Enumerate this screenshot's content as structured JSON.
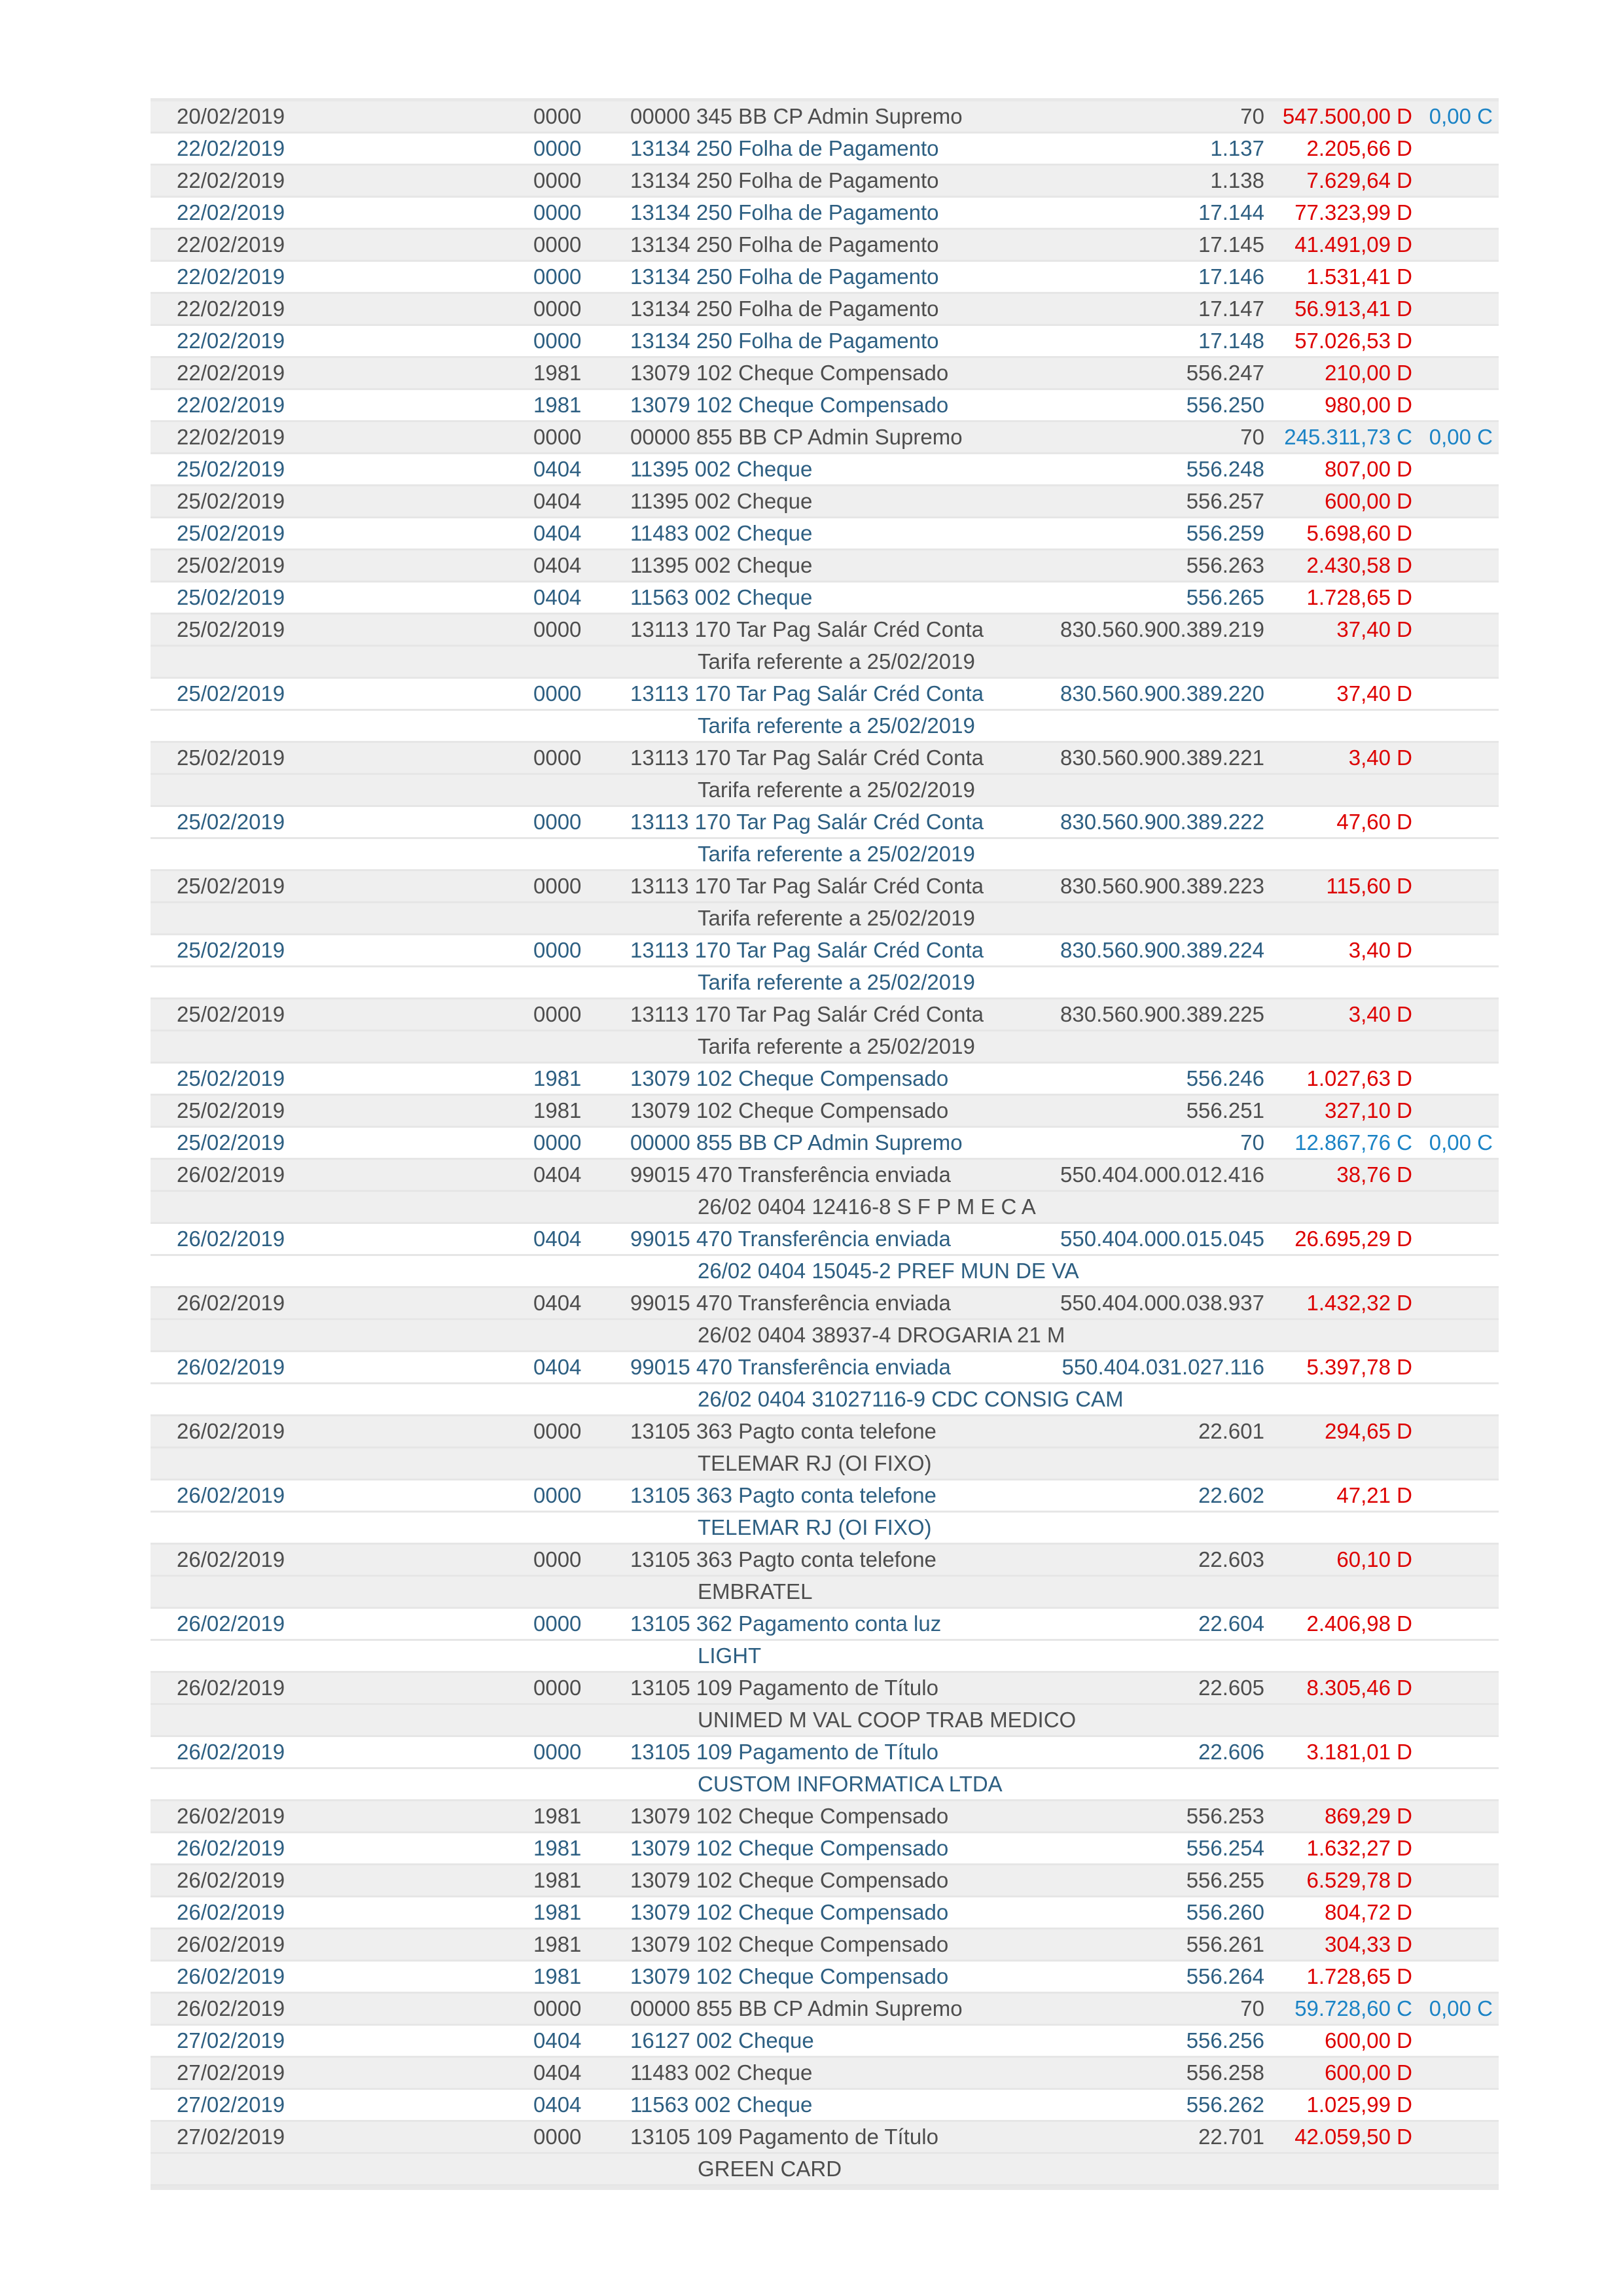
{
  "colors": {
    "stripe_gray": "#efefef",
    "row_text_gray": "#4d4d4d",
    "row_text_blue": "#2d5f82",
    "debit_red": "#dd0000",
    "credit_blue": "#1b83c5",
    "separator": "#e6e6e6"
  },
  "table": {
    "transactions": [
      {
        "date": "20/02/2019",
        "code": "0000",
        "description": "00000 345 BB CP Admin Supremo",
        "doc": "70",
        "value": "547.500,00 D",
        "value_type": "debit",
        "value2": "0,00 C",
        "value2_type": "credit",
        "note": null
      },
      {
        "date": "22/02/2019",
        "code": "0000",
        "description": "13134 250 Folha de Pagamento",
        "doc": "1.137",
        "value": "2.205,66 D",
        "value_type": "debit",
        "value2": null,
        "value2_type": null,
        "note": null
      },
      {
        "date": "22/02/2019",
        "code": "0000",
        "description": "13134 250 Folha de Pagamento",
        "doc": "1.138",
        "value": "7.629,64 D",
        "value_type": "debit",
        "value2": null,
        "value2_type": null,
        "note": null
      },
      {
        "date": "22/02/2019",
        "code": "0000",
        "description": "13134 250 Folha de Pagamento",
        "doc": "17.144",
        "value": "77.323,99 D",
        "value_type": "debit",
        "value2": null,
        "value2_type": null,
        "note": null
      },
      {
        "date": "22/02/2019",
        "code": "0000",
        "description": "13134 250 Folha de Pagamento",
        "doc": "17.145",
        "value": "41.491,09 D",
        "value_type": "debit",
        "value2": null,
        "value2_type": null,
        "note": null
      },
      {
        "date": "22/02/2019",
        "code": "0000",
        "description": "13134 250 Folha de Pagamento",
        "doc": "17.146",
        "value": "1.531,41 D",
        "value_type": "debit",
        "value2": null,
        "value2_type": null,
        "note": null
      },
      {
        "date": "22/02/2019",
        "code": "0000",
        "description": "13134 250 Folha de Pagamento",
        "doc": "17.147",
        "value": "56.913,41 D",
        "value_type": "debit",
        "value2": null,
        "value2_type": null,
        "note": null
      },
      {
        "date": "22/02/2019",
        "code": "0000",
        "description": "13134 250 Folha de Pagamento",
        "doc": "17.148",
        "value": "57.026,53 D",
        "value_type": "debit",
        "value2": null,
        "value2_type": null,
        "note": null
      },
      {
        "date": "22/02/2019",
        "code": "1981",
        "description": "13079 102 Cheque Compensado",
        "doc": "556.247",
        "value": "210,00 D",
        "value_type": "debit",
        "value2": null,
        "value2_type": null,
        "note": null
      },
      {
        "date": "22/02/2019",
        "code": "1981",
        "description": "13079 102 Cheque Compensado",
        "doc": "556.250",
        "value": "980,00 D",
        "value_type": "debit",
        "value2": null,
        "value2_type": null,
        "note": null
      },
      {
        "date": "22/02/2019",
        "code": "0000",
        "description": "00000 855 BB CP Admin Supremo",
        "doc": "70",
        "value": "245.311,73 C",
        "value_type": "credit",
        "value2": "0,00 C",
        "value2_type": "credit",
        "note": null
      },
      {
        "date": "25/02/2019",
        "code": "0404",
        "description": "11395 002 Cheque",
        "doc": "556.248",
        "value": "807,00 D",
        "value_type": "debit",
        "value2": null,
        "value2_type": null,
        "note": null
      },
      {
        "date": "25/02/2019",
        "code": "0404",
        "description": "11395 002 Cheque",
        "doc": "556.257",
        "value": "600,00 D",
        "value_type": "debit",
        "value2": null,
        "value2_type": null,
        "note": null
      },
      {
        "date": "25/02/2019",
        "code": "0404",
        "description": "11483 002 Cheque",
        "doc": "556.259",
        "value": "5.698,60 D",
        "value_type": "debit",
        "value2": null,
        "value2_type": null,
        "note": null
      },
      {
        "date": "25/02/2019",
        "code": "0404",
        "description": "11395 002 Cheque",
        "doc": "556.263",
        "value": "2.430,58 D",
        "value_type": "debit",
        "value2": null,
        "value2_type": null,
        "note": null
      },
      {
        "date": "25/02/2019",
        "code": "0404",
        "description": "11563 002 Cheque",
        "doc": "556.265",
        "value": "1.728,65 D",
        "value_type": "debit",
        "value2": null,
        "value2_type": null,
        "note": null
      },
      {
        "date": "25/02/2019",
        "code": "0000",
        "description": "13113 170 Tar Pag Salár Créd Conta",
        "doc": "830.560.900.389.219",
        "value": "37,40 D",
        "value_type": "debit",
        "value2": null,
        "value2_type": null,
        "note": "Tarifa referente a 25/02/2019"
      },
      {
        "date": "25/02/2019",
        "code": "0000",
        "description": "13113 170 Tar Pag Salár Créd Conta",
        "doc": "830.560.900.389.220",
        "value": "37,40 D",
        "value_type": "debit",
        "value2": null,
        "value2_type": null,
        "note": "Tarifa referente a 25/02/2019"
      },
      {
        "date": "25/02/2019",
        "code": "0000",
        "description": "13113 170 Tar Pag Salár Créd Conta",
        "doc": "830.560.900.389.221",
        "value": "3,40 D",
        "value_type": "debit",
        "value2": null,
        "value2_type": null,
        "note": "Tarifa referente a 25/02/2019"
      },
      {
        "date": "25/02/2019",
        "code": "0000",
        "description": "13113 170 Tar Pag Salár Créd Conta",
        "doc": "830.560.900.389.222",
        "value": "47,60 D",
        "value_type": "debit",
        "value2": null,
        "value2_type": null,
        "note": "Tarifa referente a 25/02/2019"
      },
      {
        "date": "25/02/2019",
        "code": "0000",
        "description": "13113 170 Tar Pag Salár Créd Conta",
        "doc": "830.560.900.389.223",
        "value": "115,60 D",
        "value_type": "debit",
        "value2": null,
        "value2_type": null,
        "note": "Tarifa referente a 25/02/2019"
      },
      {
        "date": "25/02/2019",
        "code": "0000",
        "description": "13113 170 Tar Pag Salár Créd Conta",
        "doc": "830.560.900.389.224",
        "value": "3,40 D",
        "value_type": "debit",
        "value2": null,
        "value2_type": null,
        "note": "Tarifa referente a 25/02/2019"
      },
      {
        "date": "25/02/2019",
        "code": "0000",
        "description": "13113 170 Tar Pag Salár Créd Conta",
        "doc": "830.560.900.389.225",
        "value": "3,40 D",
        "value_type": "debit",
        "value2": null,
        "value2_type": null,
        "note": "Tarifa referente a 25/02/2019"
      },
      {
        "date": "25/02/2019",
        "code": "1981",
        "description": "13079 102 Cheque Compensado",
        "doc": "556.246",
        "value": "1.027,63 D",
        "value_type": "debit",
        "value2": null,
        "value2_type": null,
        "note": null
      },
      {
        "date": "25/02/2019",
        "code": "1981",
        "description": "13079 102 Cheque Compensado",
        "doc": "556.251",
        "value": "327,10 D",
        "value_type": "debit",
        "value2": null,
        "value2_type": null,
        "note": null
      },
      {
        "date": "25/02/2019",
        "code": "0000",
        "description": "00000 855 BB CP Admin Supremo",
        "doc": "70",
        "value": "12.867,76 C",
        "value_type": "credit",
        "value2": "0,00 C",
        "value2_type": "credit",
        "note": null
      },
      {
        "date": "26/02/2019",
        "code": "0404",
        "description": "99015 470 Transferência enviada",
        "doc": "550.404.000.012.416",
        "value": "38,76 D",
        "value_type": "debit",
        "value2": null,
        "value2_type": null,
        "note": "26/02 0404 12416-8 S F P M E C A"
      },
      {
        "date": "26/02/2019",
        "code": "0404",
        "description": "99015 470 Transferência enviada",
        "doc": "550.404.000.015.045",
        "value": "26.695,29 D",
        "value_type": "debit",
        "value2": null,
        "value2_type": null,
        "note": "26/02 0404 15045-2 PREF MUN DE VA"
      },
      {
        "date": "26/02/2019",
        "code": "0404",
        "description": "99015 470 Transferência enviada",
        "doc": "550.404.000.038.937",
        "value": "1.432,32 D",
        "value_type": "debit",
        "value2": null,
        "value2_type": null,
        "note": "26/02 0404 38937-4 DROGARIA 21 M"
      },
      {
        "date": "26/02/2019",
        "code": "0404",
        "description": "99015 470 Transferência enviada",
        "doc": "550.404.031.027.116",
        "value": "5.397,78 D",
        "value_type": "debit",
        "value2": null,
        "value2_type": null,
        "note": "26/02 0404 31027116-9 CDC CONSIG CAM"
      },
      {
        "date": "26/02/2019",
        "code": "0000",
        "description": "13105 363 Pagto conta telefone",
        "doc": "22.601",
        "value": "294,65 D",
        "value_type": "debit",
        "value2": null,
        "value2_type": null,
        "note": "TELEMAR RJ (OI FIXO)"
      },
      {
        "date": "26/02/2019",
        "code": "0000",
        "description": "13105 363 Pagto conta telefone",
        "doc": "22.602",
        "value": "47,21 D",
        "value_type": "debit",
        "value2": null,
        "value2_type": null,
        "note": "TELEMAR RJ (OI FIXO)"
      },
      {
        "date": "26/02/2019",
        "code": "0000",
        "description": "13105 363 Pagto conta telefone",
        "doc": "22.603",
        "value": "60,10 D",
        "value_type": "debit",
        "value2": null,
        "value2_type": null,
        "note": "EMBRATEL"
      },
      {
        "date": "26/02/2019",
        "code": "0000",
        "description": "13105 362 Pagamento conta luz",
        "doc": "22.604",
        "value": "2.406,98 D",
        "value_type": "debit",
        "value2": null,
        "value2_type": null,
        "note": "LIGHT"
      },
      {
        "date": "26/02/2019",
        "code": "0000",
        "description": "13105 109 Pagamento de Título",
        "doc": "22.605",
        "value": "8.305,46 D",
        "value_type": "debit",
        "value2": null,
        "value2_type": null,
        "note": "UNIMED M VAL COOP TRAB MEDICO"
      },
      {
        "date": "26/02/2019",
        "code": "0000",
        "description": "13105 109 Pagamento de Título",
        "doc": "22.606",
        "value": "3.181,01 D",
        "value_type": "debit",
        "value2": null,
        "value2_type": null,
        "note": "CUSTOM INFORMATICA LTDA"
      },
      {
        "date": "26/02/2019",
        "code": "1981",
        "description": "13079 102 Cheque Compensado",
        "doc": "556.253",
        "value": "869,29 D",
        "value_type": "debit",
        "value2": null,
        "value2_type": null,
        "note": null
      },
      {
        "date": "26/02/2019",
        "code": "1981",
        "description": "13079 102 Cheque Compensado",
        "doc": "556.254",
        "value": "1.632,27 D",
        "value_type": "debit",
        "value2": null,
        "value2_type": null,
        "note": null
      },
      {
        "date": "26/02/2019",
        "code": "1981",
        "description": "13079 102 Cheque Compensado",
        "doc": "556.255",
        "value": "6.529,78 D",
        "value_type": "debit",
        "value2": null,
        "value2_type": null,
        "note": null
      },
      {
        "date": "26/02/2019",
        "code": "1981",
        "description": "13079 102 Cheque Compensado",
        "doc": "556.260",
        "value": "804,72 D",
        "value_type": "debit",
        "value2": null,
        "value2_type": null,
        "note": null
      },
      {
        "date": "26/02/2019",
        "code": "1981",
        "description": "13079 102 Cheque Compensado",
        "doc": "556.261",
        "value": "304,33 D",
        "value_type": "debit",
        "value2": null,
        "value2_type": null,
        "note": null
      },
      {
        "date": "26/02/2019",
        "code": "1981",
        "description": "13079 102 Cheque Compensado",
        "doc": "556.264",
        "value": "1.728,65 D",
        "value_type": "debit",
        "value2": null,
        "value2_type": null,
        "note": null
      },
      {
        "date": "26/02/2019",
        "code": "0000",
        "description": "00000 855 BB CP Admin Supremo",
        "doc": "70",
        "value": "59.728,60 C",
        "value_type": "credit",
        "value2": "0,00 C",
        "value2_type": "credit",
        "note": null
      },
      {
        "date": "27/02/2019",
        "code": "0404",
        "description": "16127 002 Cheque",
        "doc": "556.256",
        "value": "600,00 D",
        "value_type": "debit",
        "value2": null,
        "value2_type": null,
        "note": null
      },
      {
        "date": "27/02/2019",
        "code": "0404",
        "description": "11483 002 Cheque",
        "doc": "556.258",
        "value": "600,00 D",
        "value_type": "debit",
        "value2": null,
        "value2_type": null,
        "note": null
      },
      {
        "date": "27/02/2019",
        "code": "0404",
        "description": "11563 002 Cheque",
        "doc": "556.262",
        "value": "1.025,99 D",
        "value_type": "debit",
        "value2": null,
        "value2_type": null,
        "note": null
      },
      {
        "date": "27/02/2019",
        "code": "0000",
        "description": "13105 109 Pagamento de Título",
        "doc": "22.701",
        "value": "42.059,50 D",
        "value_type": "debit",
        "value2": null,
        "value2_type": null,
        "note": "GREEN CARD"
      }
    ]
  }
}
